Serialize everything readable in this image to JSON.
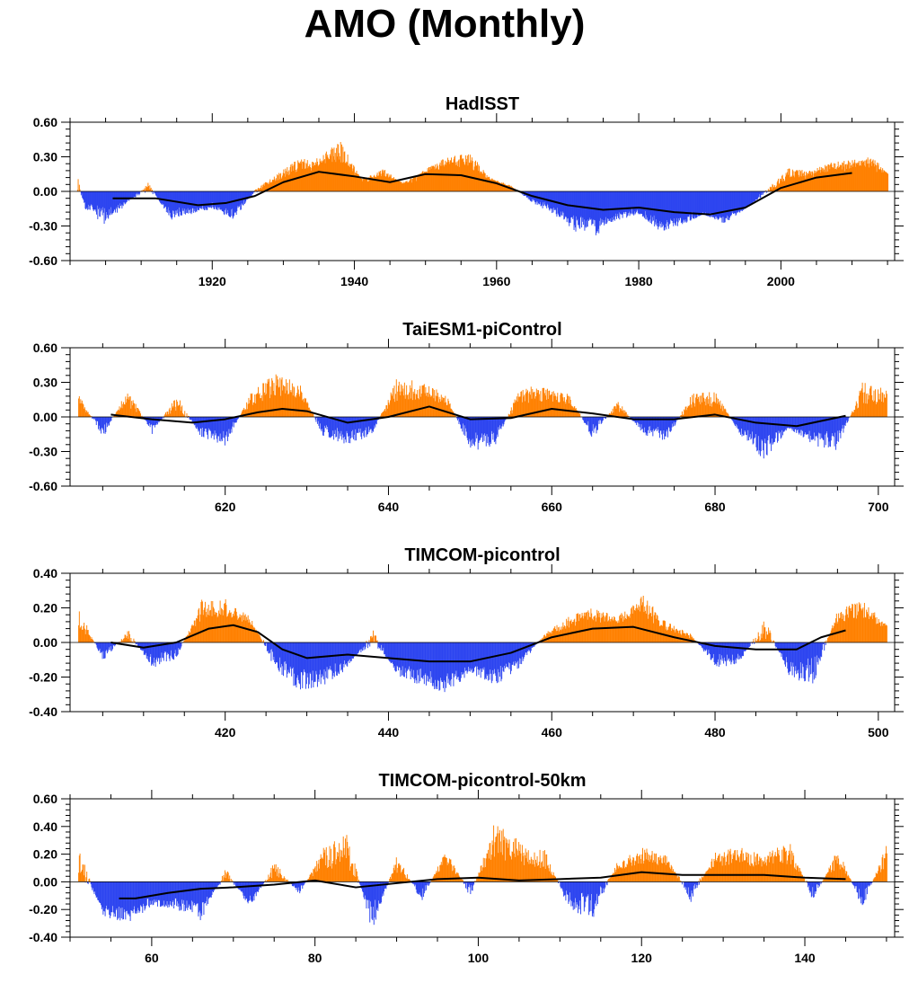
{
  "figure_title": "AMO (Monthly)",
  "colors": {
    "positive": "#ff8000",
    "negative": "#2c44f0",
    "smooth": "#000000",
    "axis": "#000000"
  },
  "chart_data": [
    {
      "type": "bar",
      "title": "HadISST",
      "xlim": [
        1900,
        2016
      ],
      "ylim": [
        -0.6,
        0.6
      ],
      "x_ticks": [
        1920,
        1940,
        1960,
        1980,
        2000
      ],
      "y_ticks": [
        -0.6,
        -0.3,
        0.0,
        0.3,
        0.6
      ],
      "y_tick_labels": [
        "-0.60",
        "-0.30",
        "0.00",
        "0.30",
        "0.60"
      ],
      "series": [
        {
          "x": [
            1901,
            1902,
            1905,
            1908,
            1911,
            1914,
            1917,
            1920,
            1923,
            1926,
            1929,
            1932,
            1935,
            1938,
            1941,
            1944,
            1947,
            1950,
            1953,
            1956,
            1959,
            1962,
            1965,
            1968,
            1971,
            1974,
            1977,
            1980,
            1983,
            1986,
            1989,
            1992,
            1995,
            1998,
            2001,
            2004,
            2007,
            2010,
            2013,
            2015
          ],
          "values": [
            0.15,
            -0.15,
            -0.3,
            -0.1,
            0.08,
            -0.25,
            -0.2,
            -0.15,
            -0.25,
            0.02,
            0.15,
            0.28,
            0.3,
            0.45,
            0.1,
            0.2,
            0.05,
            0.2,
            0.3,
            0.35,
            0.12,
            0.05,
            -0.1,
            -0.2,
            -0.35,
            -0.4,
            -0.25,
            -0.2,
            -0.35,
            -0.3,
            -0.2,
            -0.28,
            -0.15,
            0.02,
            0.2,
            0.18,
            0.25,
            0.28,
            0.3,
            0.15
          ]
        },
        {
          "name": "smoothed",
          "x": [
            1906,
            1912,
            1918,
            1922,
            1926,
            1930,
            1935,
            1940,
            1945,
            1950,
            1955,
            1960,
            1965,
            1970,
            1975,
            1980,
            1985,
            1990,
            1995,
            2000,
            2005,
            2010
          ],
          "values": [
            -0.06,
            -0.06,
            -0.12,
            -0.1,
            -0.04,
            0.08,
            0.17,
            0.13,
            0.08,
            0.15,
            0.14,
            0.07,
            -0.04,
            -0.12,
            -0.16,
            -0.14,
            -0.18,
            -0.2,
            -0.14,
            0.03,
            0.12,
            0.16
          ]
        }
      ]
    },
    {
      "type": "bar",
      "title": "TaiESM1-piControl",
      "xlim": [
        601,
        702
      ],
      "ylim": [
        -0.6,
        0.6
      ],
      "x_ticks": [
        620,
        640,
        660,
        680,
        700
      ],
      "y_ticks": [
        -0.6,
        -0.3,
        0.0,
        0.3,
        0.6
      ],
      "y_tick_labels": [
        "-0.60",
        "-0.30",
        "0.00",
        "0.30",
        "0.60"
      ],
      "series": [
        {
          "x": [
            602,
            605,
            608,
            611,
            614,
            617,
            620,
            623,
            626,
            629,
            632,
            635,
            638,
            641,
            644,
            647,
            650,
            653,
            656,
            659,
            662,
            665,
            668,
            671,
            674,
            677,
            680,
            683,
            686,
            689,
            692,
            695,
            698,
            701
          ],
          "values": [
            0.2,
            -0.2,
            0.25,
            -0.15,
            0.2,
            -0.18,
            -0.25,
            0.2,
            0.38,
            0.3,
            -0.2,
            -0.25,
            -0.15,
            0.35,
            0.3,
            0.2,
            -0.3,
            -0.25,
            0.25,
            0.28,
            0.2,
            -0.2,
            0.15,
            -0.15,
            -0.22,
            0.2,
            0.22,
            -0.15,
            -0.38,
            -0.1,
            -0.25,
            -0.3,
            0.3,
            0.25
          ]
        },
        {
          "name": "smoothed",
          "x": [
            606,
            611,
            616,
            620,
            624,
            627,
            630,
            635,
            640,
            645,
            650,
            655,
            660,
            665,
            670,
            675,
            680,
            685,
            690,
            696
          ],
          "values": [
            0.02,
            -0.02,
            -0.05,
            -0.02,
            0.04,
            0.07,
            0.05,
            -0.05,
            0.0,
            0.09,
            -0.02,
            -0.01,
            0.07,
            0.03,
            -0.02,
            -0.02,
            0.02,
            -0.05,
            -0.08,
            0.01
          ]
        }
      ]
    },
    {
      "type": "bar",
      "title": "TIMCOM-picontrol",
      "xlim": [
        401,
        502
      ],
      "ylim": [
        -0.4,
        0.4
      ],
      "x_ticks": [
        420,
        440,
        460,
        480,
        500
      ],
      "y_ticks": [
        -0.4,
        -0.2,
        0.0,
        0.2,
        0.4
      ],
      "y_tick_labels": [
        "-0.40",
        "-0.20",
        "0.00",
        "0.20",
        "0.40"
      ],
      "series": [
        {
          "x": [
            402,
            405,
            408,
            411,
            414,
            417,
            420,
            423,
            426,
            429,
            432,
            435,
            438,
            441,
            444,
            447,
            450,
            453,
            456,
            459,
            462,
            465,
            468,
            471,
            474,
            477,
            480,
            483,
            486,
            489,
            492,
            495,
            498,
            501
          ],
          "values": [
            0.22,
            -0.12,
            0.08,
            -0.15,
            -0.1,
            0.25,
            0.25,
            0.15,
            -0.15,
            -0.28,
            -0.25,
            -0.15,
            0.08,
            -0.2,
            -0.25,
            -0.3,
            -0.18,
            -0.25,
            -0.15,
            0.05,
            0.15,
            0.2,
            0.15,
            0.28,
            0.12,
            0.05,
            -0.15,
            -0.12,
            0.15,
            -0.2,
            -0.25,
            0.2,
            0.25,
            0.1
          ]
        },
        {
          "name": "smoothed",
          "x": [
            406,
            410,
            414,
            418,
            421,
            424,
            427,
            430,
            435,
            440,
            445,
            450,
            455,
            460,
            465,
            470,
            475,
            480,
            485,
            490,
            493,
            496
          ],
          "values": [
            0.0,
            -0.03,
            0.0,
            0.08,
            0.1,
            0.06,
            -0.04,
            -0.09,
            -0.07,
            -0.09,
            -0.11,
            -0.11,
            -0.06,
            0.03,
            0.08,
            0.09,
            0.03,
            -0.02,
            -0.04,
            -0.04,
            0.03,
            0.07
          ]
        }
      ]
    },
    {
      "type": "bar",
      "title": "TIMCOM-picontrol-50km",
      "xlim": [
        50,
        151
      ],
      "ylim": [
        -0.4,
        0.6
      ],
      "x_ticks": [
        60,
        80,
        100,
        120,
        140
      ],
      "y_ticks": [
        -0.4,
        -0.2,
        0.0,
        0.2,
        0.4,
        0.6
      ],
      "y_tick_labels": [
        "-0.40",
        "-0.20",
        "0.00",
        "0.20",
        "0.40",
        "0.60"
      ],
      "series": [
        {
          "x": [
            51,
            54,
            57,
            60,
            63,
            66,
            69,
            72,
            75,
            78,
            81,
            84,
            87,
            90,
            93,
            96,
            99,
            102,
            105,
            108,
            111,
            114,
            117,
            120,
            123,
            126,
            129,
            132,
            135,
            138,
            141,
            144,
            147,
            150
          ],
          "values": [
            0.25,
            -0.25,
            -0.3,
            -0.18,
            -0.2,
            -0.28,
            0.1,
            -0.2,
            0.15,
            -0.1,
            0.25,
            0.35,
            -0.38,
            0.2,
            -0.15,
            0.25,
            -0.12,
            0.45,
            0.3,
            0.25,
            -0.2,
            -0.28,
            0.15,
            0.25,
            0.2,
            -0.15,
            0.22,
            0.25,
            0.2,
            0.3,
            -0.15,
            0.25,
            -0.2,
            0.28
          ]
        },
        {
          "name": "smoothed",
          "x": [
            56,
            58,
            62,
            66,
            70,
            75,
            80,
            85,
            90,
            95,
            100,
            105,
            110,
            115,
            120,
            125,
            130,
            135,
            140,
            145
          ],
          "values": [
            -0.12,
            -0.12,
            -0.08,
            -0.05,
            -0.04,
            -0.02,
            0.01,
            -0.04,
            -0.01,
            0.02,
            0.03,
            0.01,
            0.02,
            0.03,
            0.07,
            0.05,
            0.05,
            0.05,
            0.03,
            0.02
          ]
        }
      ]
    }
  ]
}
